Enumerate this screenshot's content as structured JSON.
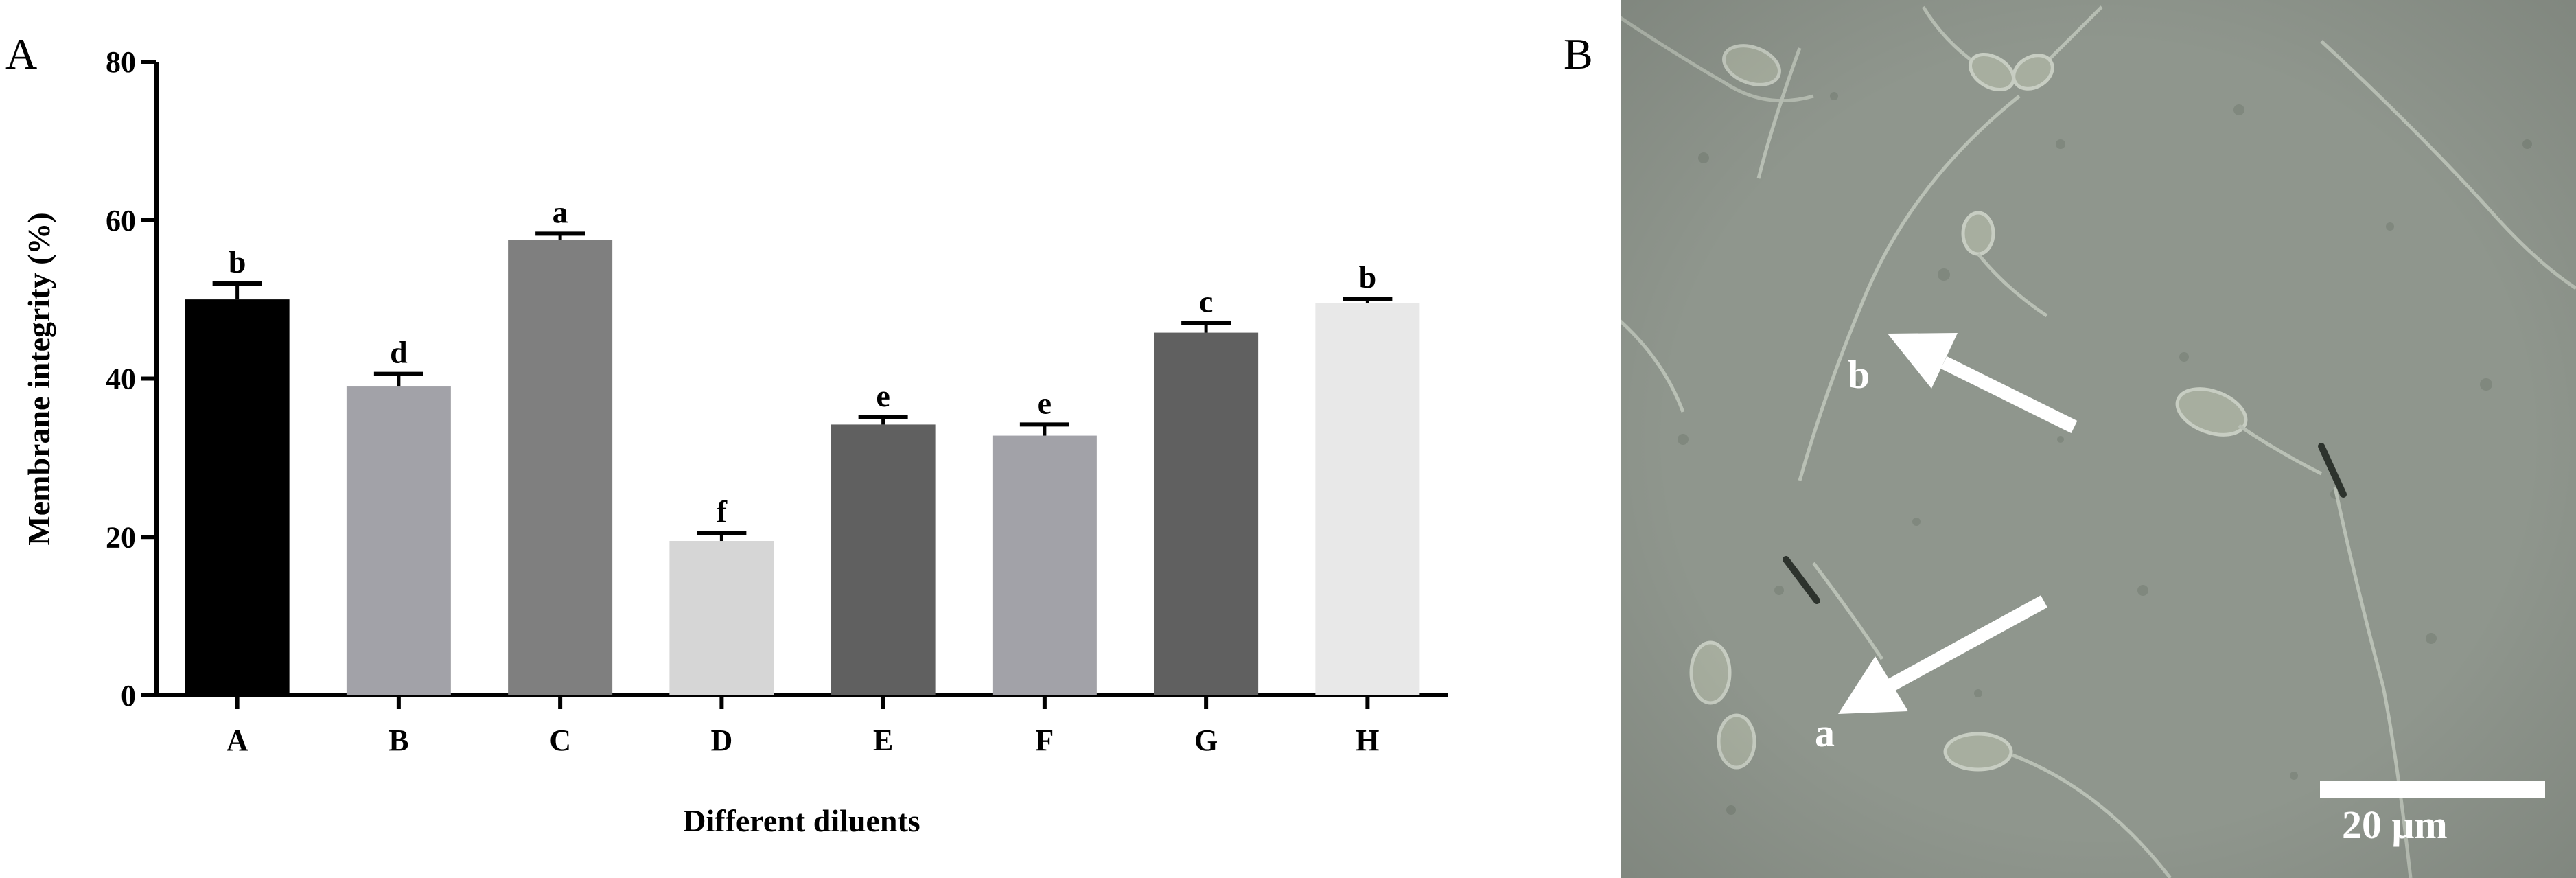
{
  "panels": {
    "left_letter": "A",
    "right_letter": "B"
  },
  "chart_data": {
    "type": "bar",
    "xlabel": "Different diluents",
    "ylabel": "Membrane integrity (%)",
    "ylim": [
      0,
      80
    ],
    "yticks": [
      0,
      20,
      40,
      60,
      80
    ],
    "categories": [
      "A",
      "B",
      "C",
      "D",
      "E",
      "F",
      "G",
      "H"
    ],
    "values": [
      50,
      39,
      57.5,
      19.5,
      34.2,
      32.8,
      45.8,
      49.5
    ],
    "errors": [
      2.0,
      1.6,
      0.8,
      1.0,
      0.9,
      1.4,
      1.2,
      0.6
    ],
    "significance": [
      "b",
      "d",
      "a",
      "f",
      "e",
      "e",
      "c",
      "b"
    ],
    "colors": [
      "#000000",
      "#a2a2a8",
      "#7f7f7f",
      "#d6d6d6",
      "#606060",
      "#a2a2a8",
      "#606060",
      "#e8e8e8"
    ],
    "grid": false,
    "legend": "none"
  },
  "micrograph": {
    "label_a": "a",
    "label_b": "b",
    "scale_bar_text": "20 μm",
    "background_color": "#8f968d"
  }
}
